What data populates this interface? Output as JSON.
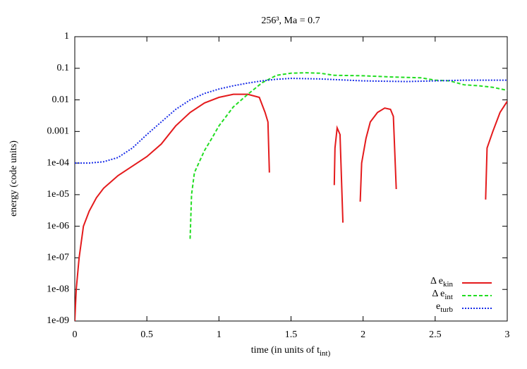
{
  "chart_data": {
    "type": "line",
    "title": "256³, Ma = 0.7",
    "xlabel": "time (in units of t_int)",
    "ylabel": "energy (code units)",
    "xlim": [
      0,
      3
    ],
    "xticks": [
      0,
      0.5,
      1,
      1.5,
      2,
      2.5,
      3
    ],
    "ylim": [
      1e-09,
      1
    ],
    "log_y": true,
    "yticks": [
      1,
      0.1,
      0.01,
      0.001,
      {
        "value": 0.0001,
        "label": "1e-04"
      },
      {
        "value": 1e-05,
        "label": "1e-05"
      },
      {
        "value": 1e-06,
        "label": "1e-06"
      },
      {
        "value": 1e-07,
        "label": "1e-07"
      },
      {
        "value": 1e-08,
        "label": "1e-08"
      },
      {
        "value": 1e-09,
        "label": "1e-09"
      }
    ],
    "grid": false,
    "legend": "lower right",
    "series": [
      {
        "name": "Δ e_kin",
        "color": "#e41a1c",
        "style": "solid",
        "x": [
          0,
          0.01,
          0.03,
          0.06,
          0.1,
          0.15,
          0.2,
          0.3,
          0.4,
          0.5,
          0.6,
          0.7,
          0.8,
          0.9,
          1.0,
          1.1,
          1.2,
          1.28,
          1.32,
          1.34,
          1.35,
          1.57,
          1.8,
          1.805,
          1.82,
          1.84,
          1.86,
          1.92,
          1.98,
          1.99,
          2.02,
          2.05,
          2.1,
          2.15,
          2.19,
          2.21,
          2.23,
          2.5,
          2.85,
          2.86,
          2.9,
          2.95,
          3.0
        ],
        "values": [
          1e-09,
          1e-08,
          1e-07,
          1e-06,
          3e-06,
          8e-06,
          1.6e-05,
          4e-05,
          8e-05,
          0.00016,
          0.0004,
          0.0015,
          0.004,
          0.008,
          0.012,
          0.015,
          0.015,
          0.012,
          0.004,
          0.002,
          5e-05,
          null,
          2e-05,
          0.0003,
          0.0013,
          0.0008,
          1.3e-06,
          null,
          6e-06,
          0.0001,
          0.0006,
          0.002,
          0.004,
          0.0055,
          0.005,
          0.003,
          1.5e-05,
          null,
          7e-06,
          0.0003,
          0.001,
          0.004,
          0.009
        ]
      },
      {
        "name": "Δ e_int",
        "color": "#22dd22",
        "style": "dashed",
        "x": [
          0.8,
          0.81,
          0.83,
          0.86,
          0.9,
          0.95,
          1.0,
          1.05,
          1.1,
          1.2,
          1.3,
          1.4,
          1.5,
          1.6,
          1.7,
          1.8,
          2.0,
          2.2,
          2.4,
          2.5,
          2.6,
          2.7,
          2.8,
          2.9,
          3.0
        ],
        "values": [
          4e-07,
          1e-05,
          5e-05,
          0.0001,
          0.00025,
          0.0006,
          0.0015,
          0.003,
          0.006,
          0.015,
          0.035,
          0.06,
          0.07,
          0.072,
          0.07,
          0.06,
          0.058,
          0.053,
          0.05,
          0.042,
          0.04,
          0.03,
          0.028,
          0.025,
          0.02
        ]
      },
      {
        "name": "e_turb",
        "color": "#1a2ee8",
        "style": "dotted",
        "x": [
          0,
          0.1,
          0.2,
          0.3,
          0.4,
          0.5,
          0.6,
          0.7,
          0.8,
          0.9,
          1.0,
          1.1,
          1.2,
          1.3,
          1.4,
          1.5,
          1.7,
          2.0,
          2.3,
          2.5,
          2.7,
          3.0
        ],
        "values": [
          0.0001,
          0.0001,
          0.00011,
          0.00015,
          0.0003,
          0.0008,
          0.002,
          0.005,
          0.01,
          0.016,
          0.022,
          0.028,
          0.034,
          0.04,
          0.045,
          0.048,
          0.046,
          0.04,
          0.038,
          0.04,
          0.042,
          0.042
        ]
      }
    ]
  }
}
